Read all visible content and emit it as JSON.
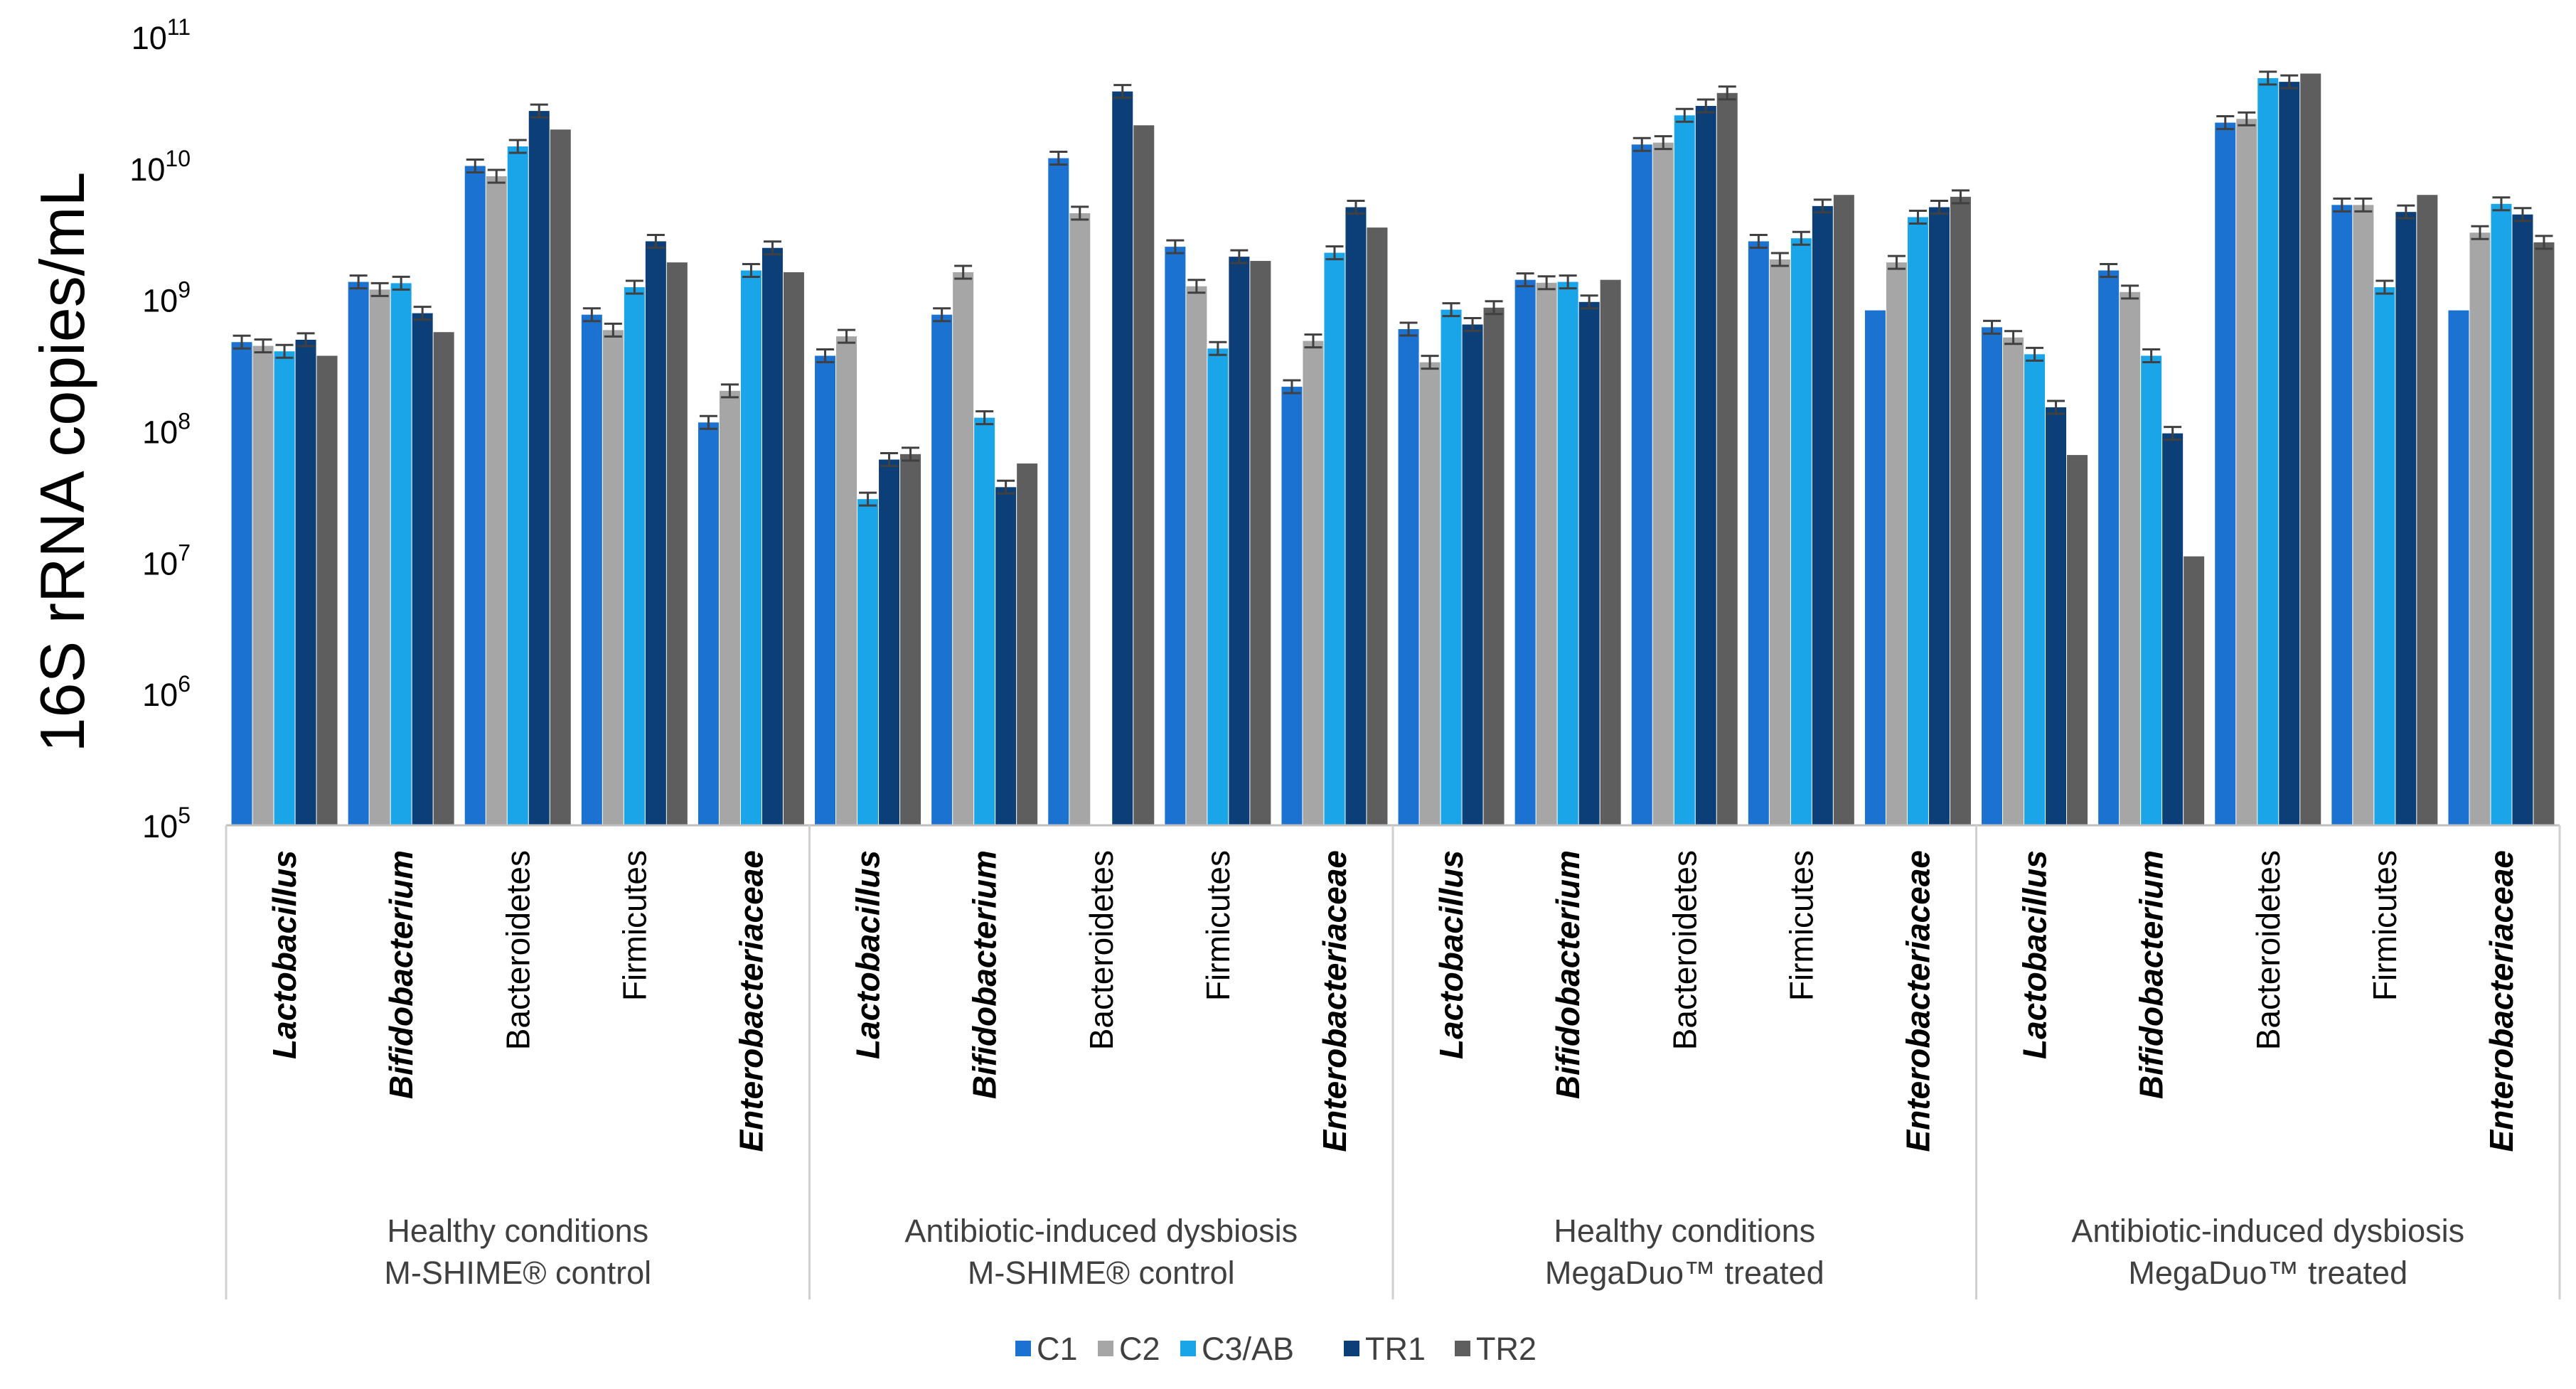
{
  "chart_data": {
    "type": "bar",
    "title": "",
    "ylabel": "16S rRNA copies/mL",
    "yscale": "log",
    "ylim": [
      100000,
      100000000000
    ],
    "yticks": [
      {
        "value": 100000,
        "base": "10",
        "exp": "5"
      },
      {
        "value": 1000000,
        "base": "10",
        "exp": "6"
      },
      {
        "value": 10000000,
        "base": "10",
        "exp": "7"
      },
      {
        "value": 100000000,
        "base": "10",
        "exp": "8"
      },
      {
        "value": 1000000000,
        "base": "10",
        "exp": "9"
      },
      {
        "value": 10000000000,
        "base": "10",
        "exp": "10"
      },
      {
        "value": 100000000000,
        "base": "10",
        "exp": "11"
      }
    ],
    "grid": false,
    "legend_position": "bottom",
    "series": [
      {
        "name": "C1",
        "color": "#1B72D0"
      },
      {
        "name": "C2",
        "color": "#A6A6A6"
      },
      {
        "name": "C3/AB",
        "color": "#1AA5E8"
      },
      {
        "name": "TR1",
        "color": "#0C3F78"
      },
      {
        "name": "TR2",
        "color": "#5E5E5E"
      }
    ],
    "groups": [
      {
        "label_line1": "Healthy conditions",
        "label_line2": "M-SHIME® control",
        "categories": [
          {
            "name": "Lactobacillus",
            "italic": true,
            "values": [
              470000000,
              440000000,
              400000000,
              490000000,
              370000000
            ],
            "errors": [
              true,
              true,
              true,
              true,
              false
            ]
          },
          {
            "name": "Bifidobacterium",
            "italic": true,
            "values": [
              1350000000,
              1180000000,
              1320000000,
              780000000,
              560000000
            ],
            "errors": [
              true,
              true,
              true,
              true,
              false
            ]
          },
          {
            "name": "Bacteroidetes",
            "italic": false,
            "values": [
              10300000000,
              8600000000,
              14500000000,
              27000000000,
              19500000000
            ],
            "errors": [
              true,
              true,
              true,
              true,
              false
            ]
          },
          {
            "name": "Firmicutes",
            "italic": false,
            "values": [
              760000000,
              580000000,
              1230000000,
              2750000000,
              1900000000
            ],
            "errors": [
              true,
              true,
              true,
              true,
              false
            ]
          },
          {
            "name": "Enterobacteriaceae",
            "italic": true,
            "values": [
              115000000,
              200000000,
              1650000000,
              2450000000,
              1600000000
            ],
            "errors": [
              true,
              true,
              true,
              true,
              false
            ]
          }
        ]
      },
      {
        "label_line1": "Antibiotic-induced dysbiosis",
        "label_line2": "M-SHIME® control",
        "categories": [
          {
            "name": "Lactobacillus",
            "italic": true,
            "values": [
              370000000,
              520000000,
              30000000,
              60000000,
              66000000
            ],
            "errors": [
              true,
              true,
              true,
              true,
              true
            ]
          },
          {
            "name": "Bifidobacterium",
            "italic": true,
            "values": [
              760000000,
              1600000000,
              125000000,
              37000000,
              56000000
            ],
            "errors": [
              true,
              true,
              true,
              true,
              false
            ]
          },
          {
            "name": "Bacteroidetes",
            "italic": false,
            "values": [
              11800000000,
              4500000000,
              0,
              38000000000,
              21000000000
            ],
            "errors": [
              true,
              true,
              false,
              true,
              false
            ]
          },
          {
            "name": "Firmicutes",
            "italic": false,
            "values": [
              2500000000,
              1250000000,
              420000000,
              2100000000,
              1950000000
            ],
            "errors": [
              true,
              true,
              true,
              true,
              false
            ]
          },
          {
            "name": "Enterobacteriaceae",
            "italic": true,
            "values": [
              215000000,
              480000000,
              2250000000,
              5000000000,
              3500000000
            ],
            "errors": [
              true,
              true,
              true,
              true,
              false
            ]
          }
        ]
      },
      {
        "label_line1": "Healthy conditions",
        "label_line2": "MegaDuo™ treated",
        "categories": [
          {
            "name": "Lactobacillus",
            "italic": true,
            "values": [
              590000000,
              330000000,
              830000000,
              640000000,
              860000000
            ],
            "errors": [
              true,
              true,
              true,
              true,
              true
            ]
          },
          {
            "name": "Bifidobacterium",
            "italic": true,
            "values": [
              1400000000,
              1330000000,
              1350000000,
              950000000,
              1400000000
            ],
            "errors": [
              true,
              true,
              true,
              true,
              false
            ]
          },
          {
            "name": "Bacteroidetes",
            "italic": false,
            "values": [
              15000000000,
              15500000000,
              25000000000,
              29500000000,
              37000000000
            ],
            "errors": [
              true,
              true,
              true,
              true,
              true
            ]
          },
          {
            "name": "Firmicutes",
            "italic": false,
            "values": [
              2750000000,
              2000000000,
              2900000000,
              5100000000,
              6200000000
            ],
            "errors": [
              true,
              true,
              true,
              true,
              false
            ]
          },
          {
            "name": "Enterobacteriaceae",
            "italic": true,
            "values": [
              820000000,
              1900000000,
              4200000000,
              5000000000,
              6000000000
            ],
            "errors": [
              false,
              true,
              true,
              true,
              true
            ]
          }
        ]
      },
      {
        "label_line1": "Antibiotic-induced dysbiosis",
        "label_line2": "MegaDuo™ treated",
        "categories": [
          {
            "name": "Lactobacillus",
            "italic": true,
            "values": [
              610000000,
              510000000,
              380000000,
              150000000,
              65000000
            ],
            "errors": [
              true,
              true,
              true,
              true,
              false
            ]
          },
          {
            "name": "Bifidobacterium",
            "italic": true,
            "values": [
              1650000000,
              1130000000,
              370000000,
              95000000,
              11000000
            ],
            "errors": [
              true,
              true,
              true,
              true,
              false
            ]
          },
          {
            "name": "Bacteroidetes",
            "italic": false,
            "values": [
              22000000000,
              23500000000,
              48000000000,
              45000000000,
              52000000000
            ],
            "errors": [
              true,
              true,
              true,
              true,
              false
            ]
          },
          {
            "name": "Firmicutes",
            "italic": false,
            "values": [
              5200000000,
              5200000000,
              1230000000,
              4600000000,
              6200000000
            ],
            "errors": [
              true,
              true,
              true,
              true,
              false
            ]
          },
          {
            "name": "Enterobacteriaceae",
            "italic": true,
            "values": [
              820000000,
              3200000000,
              5300000000,
              4400000000,
              2700000000
            ],
            "errors": [
              false,
              true,
              true,
              true,
              true
            ]
          }
        ]
      }
    ]
  }
}
